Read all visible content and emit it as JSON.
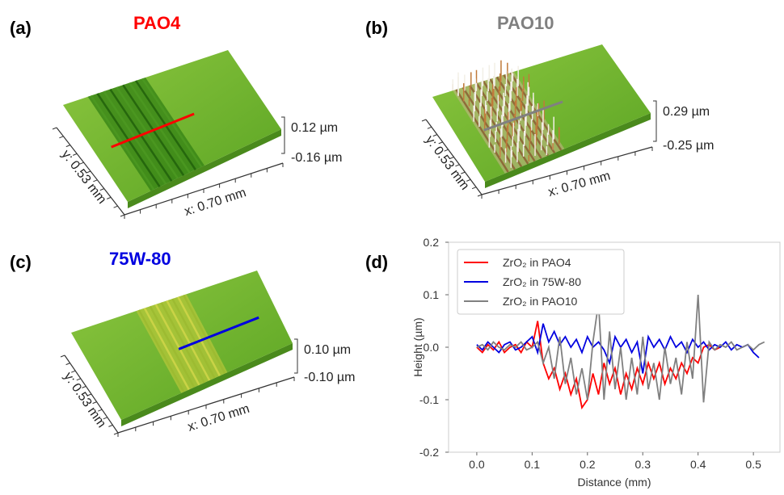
{
  "panels": [
    {
      "label": "(a)",
      "title": "PAO4",
      "color": "#ff0000",
      "y_axis": "y: 0.53 mm",
      "x_axis": "x: 0.70 mm",
      "z_max": "0.12 µm",
      "z_min": "-0.16 µm"
    },
    {
      "label": "(b)",
      "title": "PAO10",
      "color": "#808080",
      "y_axis": "y: 0.53 mm",
      "x_axis": "x: 0.70 mm",
      "z_max": "0.29 µm",
      "z_min": "-0.25 µm"
    },
    {
      "label": "(c)",
      "title": "75W-80",
      "color": "#0000e0",
      "y_axis": "y: 0.53 mm",
      "x_axis": "x: 0.70 mm",
      "z_max": "0.10 µm",
      "z_min": "-0.10 µm"
    }
  ],
  "chart_data": {
    "type": "line",
    "label": "(d)",
    "x_label": "Distance (mm)",
    "y_label": "Height (µm)",
    "xlim": [
      -0.051,
      0.548
    ],
    "ylim": [
      -0.2,
      0.2
    ],
    "xticks": [
      {
        "value": 0,
        "label": "0.0"
      },
      0.1,
      0.2,
      0.3,
      0.4,
      0.5
    ],
    "yticks": [
      -0.2,
      -0.1,
      {
        "value": 0,
        "label": "0.0"
      },
      0.1,
      0.2
    ],
    "x": [
      0,
      0.01,
      0.02,
      0.03,
      0.04,
      0.05,
      0.06,
      0.07,
      0.08,
      0.09,
      0.1,
      0.11,
      0.12,
      0.13,
      0.14,
      0.15,
      0.16,
      0.17,
      0.18,
      0.19,
      0.2,
      0.21,
      0.22,
      0.23,
      0.24,
      0.25,
      0.26,
      0.27,
      0.28,
      0.29,
      0.3,
      0.31,
      0.32,
      0.33,
      0.34,
      0.35,
      0.36,
      0.37,
      0.38,
      0.39,
      0.4,
      0.41,
      0.42,
      0.43,
      0.44,
      0.45,
      0.46,
      0.47,
      0.48,
      0.49,
      0.5,
      0.51,
      0.52
    ],
    "series": [
      {
        "name": "ZrO₂  in PAO4",
        "color": "#ff0000",
        "values": [
          0,
          -0.01,
          0.005,
          -0.005,
          0.01,
          -0.01,
          0,
          0.005,
          -0.01,
          0.01,
          0,
          0.05,
          -0.03,
          -0.06,
          -0.04,
          -0.08,
          -0.05,
          -0.09,
          -0.06,
          -0.115,
          -0.1,
          -0.05,
          -0.09,
          -0.03,
          -0.07,
          -0.04,
          -0.09,
          -0.05,
          -0.08,
          -0.04,
          -0.07,
          -0.03,
          -0.06,
          -0.03,
          -0.07,
          -0.04,
          -0.06,
          -0.03,
          -0.05,
          -0.02,
          -0.03,
          0,
          0.005,
          -0.005,
          0,
          null,
          null,
          null,
          null,
          null,
          null,
          null,
          null
        ]
      },
      {
        "name": "ZrO₂  in 75W-80",
        "color": "#0000e0",
        "values": [
          0.005,
          -0.005,
          0.01,
          0,
          -0.01,
          0.005,
          0.01,
          -0.005,
          0,
          0.01,
          0.02,
          -0.01,
          0.045,
          0.01,
          0.03,
          0.005,
          0.02,
          0,
          0.015,
          -0.01,
          0.02,
          0,
          0.01,
          -0.005,
          -0.03,
          0.02,
          0,
          0.015,
          -0.01,
          0.01,
          -0.05,
          0.02,
          0,
          0.015,
          -0.005,
          0.02,
          0,
          0.01,
          -0.01,
          0.015,
          0,
          0.01,
          -0.005,
          0.005,
          0,
          0.01,
          -0.005,
          0.005,
          0,
          0.005,
          -0.01,
          -0.02,
          null
        ]
      },
      {
        "name": "ZrO₂  in PAO10",
        "color": "#808080",
        "values": [
          0,
          0.005,
          -0.005,
          0.01,
          0,
          -0.005,
          0.005,
          0,
          0.01,
          -0.005,
          0,
          0.01,
          -0.03,
          0,
          -0.06,
          0.02,
          -0.07,
          -0.02,
          -0.09,
          -0.04,
          -0.1,
          0.01,
          0.085,
          -0.1,
          0.03,
          -0.08,
          0,
          -0.1,
          -0.02,
          -0.09,
          0.02,
          -0.08,
          -0.03,
          -0.1,
          0,
          -0.07,
          -0.02,
          -0.09,
          0.01,
          -0.06,
          0.1,
          -0.105,
          0.01,
          -0.005,
          0.005,
          0,
          0.01,
          -0.005,
          0,
          0.005,
          -0.005,
          0.005,
          0.01
        ]
      }
    ]
  }
}
